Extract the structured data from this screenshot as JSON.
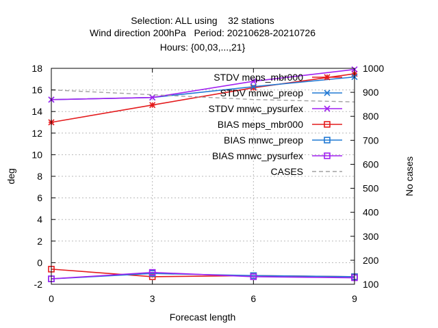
{
  "chart_data": {
    "type": "line",
    "title_lines": [
      "Selection: ALL using    32 stations",
      "Wind direction 200hPa   Period: 20210628-20210726",
      "Hours: {00,03,...,21}"
    ],
    "xlabel": "Forecast length",
    "ylabel": "deg",
    "y2label": "No cases",
    "x": [
      0,
      3,
      6,
      9
    ],
    "xlim": [
      0,
      9
    ],
    "xticks": [
      "0",
      "3",
      "6",
      "9"
    ],
    "ylim": [
      -2,
      18
    ],
    "yticks": [
      "-2",
      "0",
      "2",
      "4",
      "6",
      "8",
      "10",
      "12",
      "14",
      "16",
      "18"
    ],
    "y2lim": [
      100,
      1000
    ],
    "y2ticks": [
      "100",
      "200",
      "300",
      "400",
      "500",
      "600",
      "700",
      "800",
      "900",
      "1000"
    ],
    "grid": true,
    "legend_position": "top-right",
    "series": [
      {
        "name": "STDV meps_mbr000",
        "axis": "y",
        "marker": "star",
        "dash": false,
        "color": "#e41a1c",
        "values": [
          13.0,
          14.6,
          16.2,
          17.5
        ]
      },
      {
        "name": "STDV mnwc_preop",
        "axis": "y",
        "marker": "x",
        "dash": false,
        "color": "#1f78d4",
        "values": [
          15.1,
          15.3,
          16.3,
          17.2
        ]
      },
      {
        "name": "STDV mnwc_pysurfex",
        "axis": "y",
        "marker": "x",
        "dash": false,
        "color": "#a020f0",
        "values": [
          15.1,
          15.3,
          16.8,
          17.9
        ]
      },
      {
        "name": "BIAS meps_mbr000",
        "axis": "y",
        "marker": "square",
        "dash": false,
        "color": "#e41a1c",
        "values": [
          -0.6,
          -1.3,
          -1.2,
          -1.3
        ]
      },
      {
        "name": "BIAS mnwc_preop",
        "axis": "y",
        "marker": "square",
        "dash": false,
        "color": "#1f78d4",
        "values": [
          -1.5,
          -1.0,
          -1.2,
          -1.3
        ]
      },
      {
        "name": "BIAS mnwc_pysurfex",
        "axis": "y",
        "marker": "square",
        "dash": false,
        "color": "#a020f0",
        "values": [
          -1.5,
          -0.9,
          -1.3,
          -1.4
        ]
      },
      {
        "name": "CASES",
        "axis": "y2",
        "marker": "none",
        "dash": true,
        "color": "#a0a0a0",
        "values": [
          910,
          890,
          870,
          860
        ]
      }
    ]
  }
}
